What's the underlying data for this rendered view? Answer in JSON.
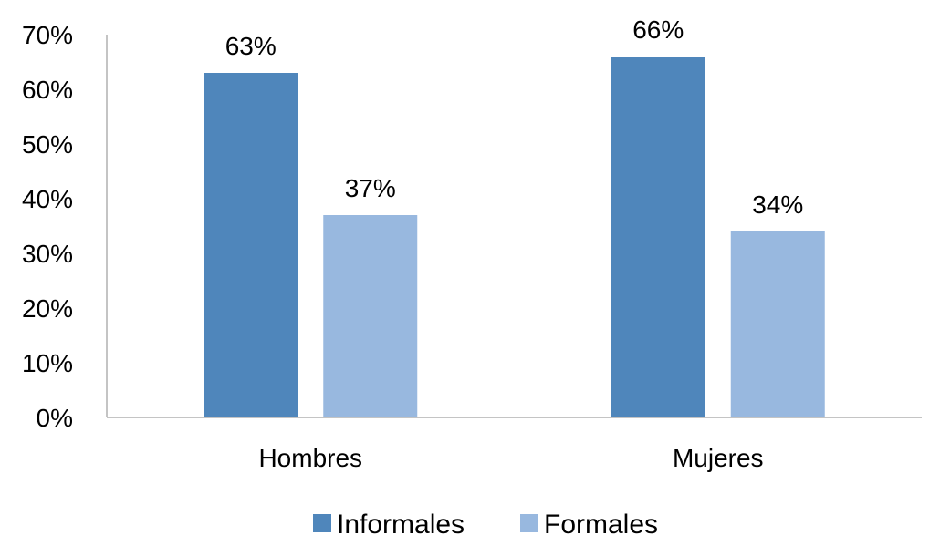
{
  "chart_data": {
    "type": "bar",
    "title": "",
    "xlabel": "",
    "ylabel": "",
    "categories": [
      "Hombres",
      "Mujeres"
    ],
    "series": [
      {
        "name": "Informales",
        "values": [
          63,
          66
        ],
        "labels": [
          "63%",
          "66%"
        ],
        "color": "#4f86bb"
      },
      {
        "name": "Formales",
        "values": [
          37,
          34
        ],
        "labels": [
          "37%",
          "34%"
        ],
        "color": "#98b8df"
      }
    ],
    "ylim": [
      0,
      70
    ],
    "yticks": [
      0,
      10,
      20,
      30,
      40,
      50,
      60,
      70
    ],
    "ytick_labels": [
      "0%",
      "10%",
      "20%",
      "30%",
      "40%",
      "50%",
      "60%",
      "70%"
    ],
    "grid": false,
    "legend_position": "bottom"
  }
}
